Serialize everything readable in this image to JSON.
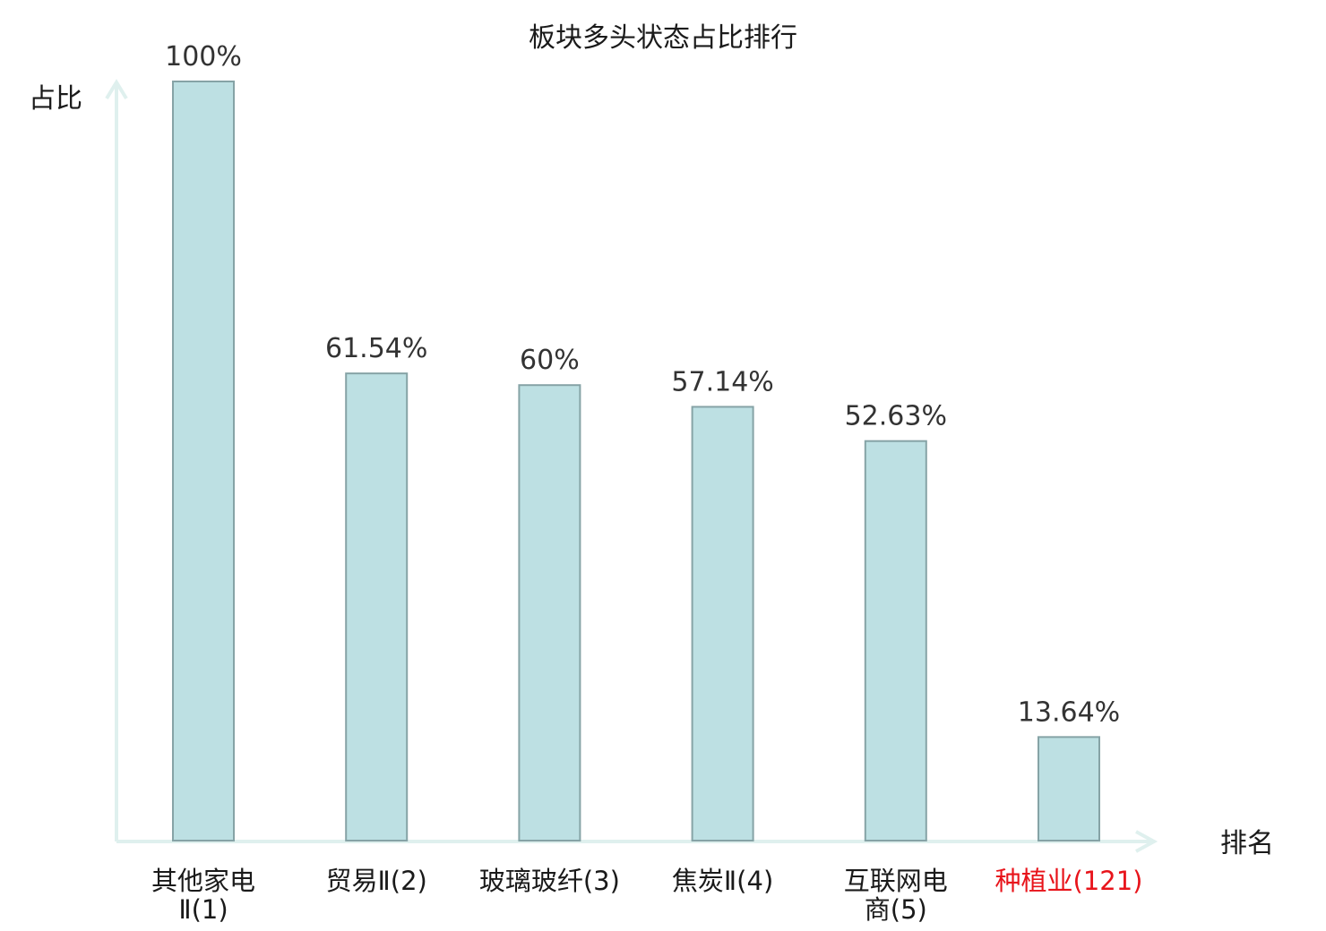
{
  "chart_data": {
    "type": "bar",
    "title": "板块多头状态占比排行",
    "xlabel": "排名",
    "ylabel": "占比",
    "ylim": [
      0,
      100
    ],
    "grid": false,
    "categories": [
      {
        "name": "其他家电Ⅱ",
        "rank": "(1)",
        "lines": [
          "其他家电",
          "Ⅱ(1)"
        ],
        "highlight": false
      },
      {
        "name": "贸易Ⅱ",
        "rank": "(2)",
        "lines": [
          "贸易Ⅱ(2)"
        ],
        "highlight": false
      },
      {
        "name": "玻璃玻纤",
        "rank": "(3)",
        "lines": [
          "玻璃玻纤(3)"
        ],
        "highlight": false
      },
      {
        "name": "焦炭Ⅱ",
        "rank": "(4)",
        "lines": [
          "焦炭Ⅱ(4)"
        ],
        "highlight": false
      },
      {
        "name": "互联网电商",
        "rank": "(5)",
        "lines": [
          "互联网电",
          "商(5)"
        ],
        "highlight": false
      },
      {
        "name": "种植业",
        "rank": "(121)",
        "lines": [
          "种植业(121)"
        ],
        "highlight": true
      }
    ],
    "values": [
      100,
      61.54,
      60,
      57.14,
      52.63,
      13.64
    ],
    "value_labels": [
      "100%",
      "61.54%",
      "60%",
      "57.14%",
      "52.63%",
      "13.64%"
    ],
    "colors": {
      "bar_fill": "#bde0e3",
      "bar_stroke": "#86a3a6",
      "axis": "#dff0ee",
      "highlight_text": "#e8141b",
      "normal_text": "#1a1a1a"
    }
  }
}
